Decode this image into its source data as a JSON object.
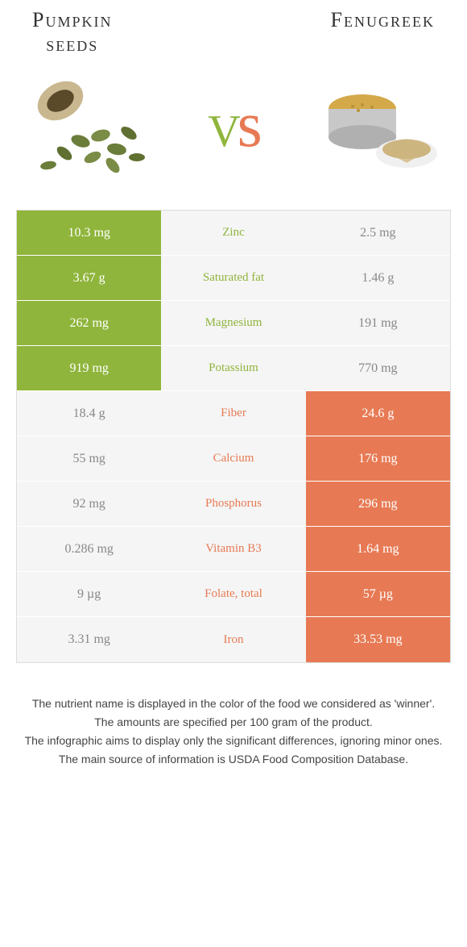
{
  "colors": {
    "left": "#8fb53c",
    "right": "#e77a54",
    "dim_bg": "#f5f5f5",
    "dim_text": "#888888",
    "mid_bg": "#f5f5f5"
  },
  "header": {
    "left_title": "Pumpkin\nseeds",
    "right_title": "Fenugreek",
    "vs_v": "v",
    "vs_s": "s"
  },
  "rows": [
    {
      "label": "Zinc",
      "left": "10.3 mg",
      "right": "2.5 mg",
      "winner": "left"
    },
    {
      "label": "Saturated fat",
      "left": "3.67 g",
      "right": "1.46 g",
      "winner": "left"
    },
    {
      "label": "Magnesium",
      "left": "262 mg",
      "right": "191 mg",
      "winner": "left"
    },
    {
      "label": "Potassium",
      "left": "919 mg",
      "right": "770 mg",
      "winner": "left"
    },
    {
      "label": "Fiber",
      "left": "18.4 g",
      "right": "24.6 g",
      "winner": "right"
    },
    {
      "label": "Calcium",
      "left": "55 mg",
      "right": "176 mg",
      "winner": "right"
    },
    {
      "label": "Phosphorus",
      "left": "92 mg",
      "right": "296 mg",
      "winner": "right"
    },
    {
      "label": "Vitamin B3",
      "left": "0.286 mg",
      "right": "1.64 mg",
      "winner": "right"
    },
    {
      "label": "Folate, total",
      "left": "9 µg",
      "right": "57 µg",
      "winner": "right"
    },
    {
      "label": "Iron",
      "left": "3.31 mg",
      "right": "33.53 mg",
      "winner": "right"
    }
  ],
  "footnotes": [
    "The nutrient name is displayed in the color of the food we considered as 'winner'.",
    "The amounts are specified per 100 gram of the product.",
    "The infographic aims to display only the significant differences, ignoring minor ones.",
    "The main source of information is USDA Food Composition Database."
  ]
}
